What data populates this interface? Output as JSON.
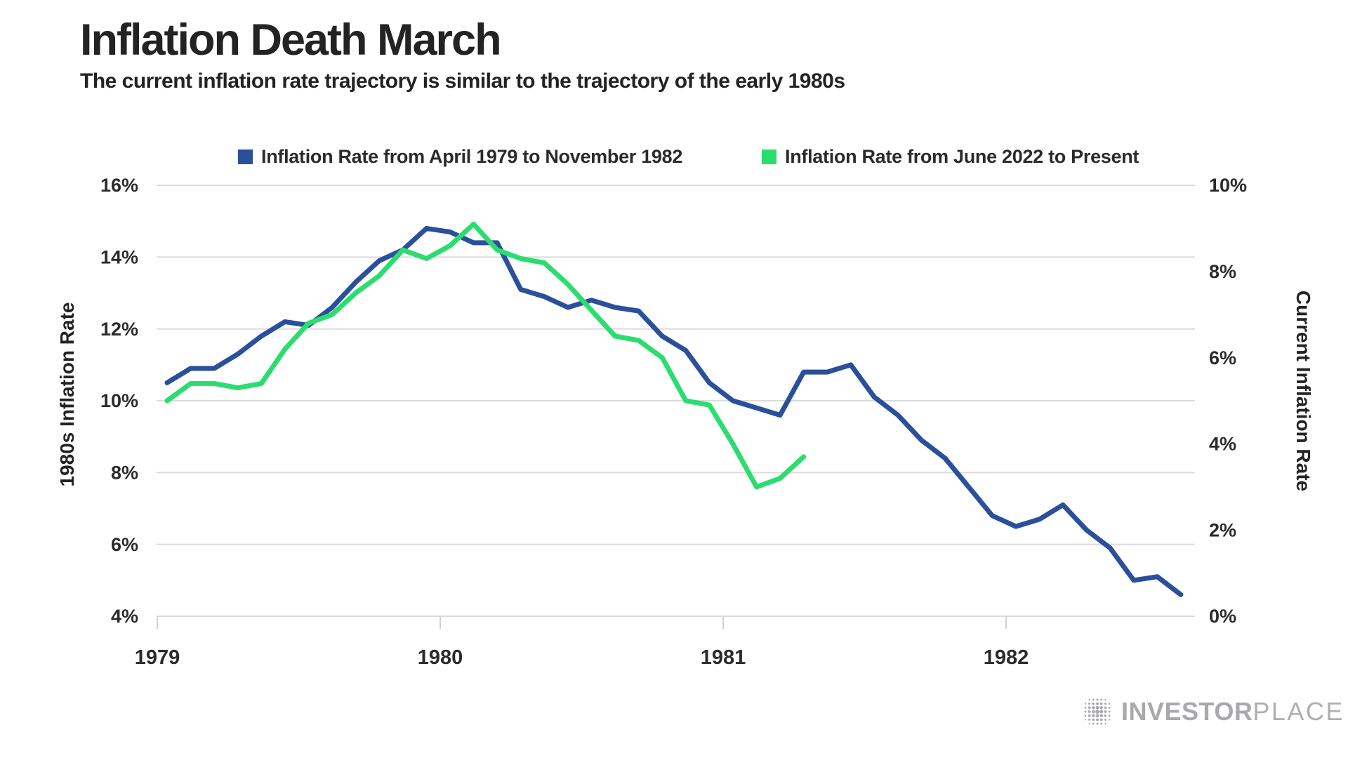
{
  "header": {
    "title": "Inflation Death March",
    "subtitle": "The current inflation rate trajectory is similar to the trajectory of the early 1980s"
  },
  "legend": {
    "items": [
      {
        "label": "Inflation Rate from April 1979 to November 1982",
        "color": "#2A4F9B"
      },
      {
        "label": "Inflation Rate from June 2022 to Present",
        "color": "#2BDD6F"
      }
    ]
  },
  "chart_data": {
    "type": "line",
    "title": "Inflation Death March",
    "subtitle": "The current inflation rate trajectory is similar to the trajectory of the early 1980s",
    "grid": "horizontal",
    "legend_position": "top",
    "x_axis": {
      "tick_labels": [
        "1979",
        "1980",
        "1981",
        "1982"
      ],
      "unit": "months"
    },
    "left_axis": {
      "label": "1980s Inflation Rate",
      "tick_labels": [
        "16%",
        "14%",
        "12%",
        "10%",
        "8%",
        "6%",
        "4%"
      ],
      "range": [
        4,
        16
      ]
    },
    "right_axis": {
      "label": "Current Inflation Rate",
      "tick_labels": [
        "10%",
        "8%",
        "6%",
        "4%",
        "2%",
        "0%"
      ],
      "range": [
        0,
        10
      ]
    },
    "series": [
      {
        "name": "Inflation Rate from April 1979 to November 1982",
        "axis": "left",
        "color": "#2A4F9B",
        "frequency": "monthly",
        "values": [
          10.5,
          10.9,
          10.9,
          11.3,
          11.8,
          12.2,
          12.1,
          12.6,
          13.3,
          13.9,
          14.2,
          14.8,
          14.7,
          14.4,
          14.4,
          13.1,
          12.9,
          12.6,
          12.8,
          12.6,
          12.5,
          11.8,
          11.4,
          10.5,
          10.0,
          9.8,
          9.6,
          10.8,
          10.8,
          11.0,
          10.1,
          9.6,
          8.9,
          8.4,
          7.6,
          6.8,
          6.5,
          6.7,
          7.1,
          6.4,
          5.9,
          5.0,
          5.1,
          4.6
        ]
      },
      {
        "name": "Inflation Rate from June 2022 to Present",
        "axis": "right",
        "color": "#2BDD6F",
        "frequency": "monthly",
        "values": [
          5.0,
          5.4,
          5.4,
          5.3,
          5.4,
          6.2,
          6.8,
          7.0,
          7.5,
          7.9,
          8.5,
          8.3,
          8.6,
          9.1,
          8.5,
          8.3,
          8.2,
          7.7,
          7.1,
          6.5,
          6.4,
          6.0,
          5.0,
          4.9,
          4.0,
          3.0,
          3.2,
          3.7
        ]
      }
    ]
  },
  "logo": {
    "name_bold": "INVESTOR",
    "name_light": "PLACE"
  }
}
